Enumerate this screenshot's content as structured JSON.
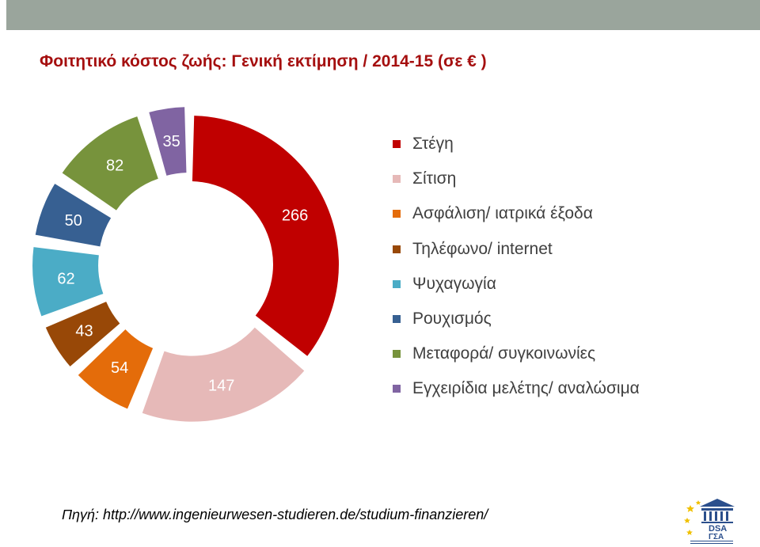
{
  "title": "Φοιτητικό κόστος ζωής: Γενική εκτίμηση / 2014-15 (σε € )",
  "source": "Πηγή: http://www.ingenieurwesen-studieren.de/studium-finanzieren/",
  "colors": {
    "title": "#a50f0f",
    "top_bar": "#9aa59c",
    "label_text": "#ffffff"
  },
  "chart_data": {
    "type": "pie",
    "variant": "donut",
    "title": "Φοιτητικό κόστος ζωής: Γενική εκτίμηση / 2014-15 (σε € )",
    "categories": [
      "Στέγη",
      "Σίτιση",
      "Ασφάλιση/ ιατρικά έξοδα",
      "Τηλέφωνο/ internet",
      "Ψυχαγωγία",
      "Ρουχισμός",
      "Μεταφορά/ συγκοινωνίες",
      "Εγχειρίδια μελέτης/ αναλώσιμα"
    ],
    "values": [
      266,
      147,
      54,
      43,
      62,
      50,
      82,
      35
    ],
    "colors": [
      "#c00000",
      "#e6b9b8",
      "#e46c0a",
      "#984807",
      "#4bacc6",
      "#376092",
      "#77933c",
      "#8064a2"
    ],
    "exploded": [
      false,
      true,
      true,
      true,
      true,
      true,
      true,
      true
    ],
    "legend_position": "right"
  }
}
